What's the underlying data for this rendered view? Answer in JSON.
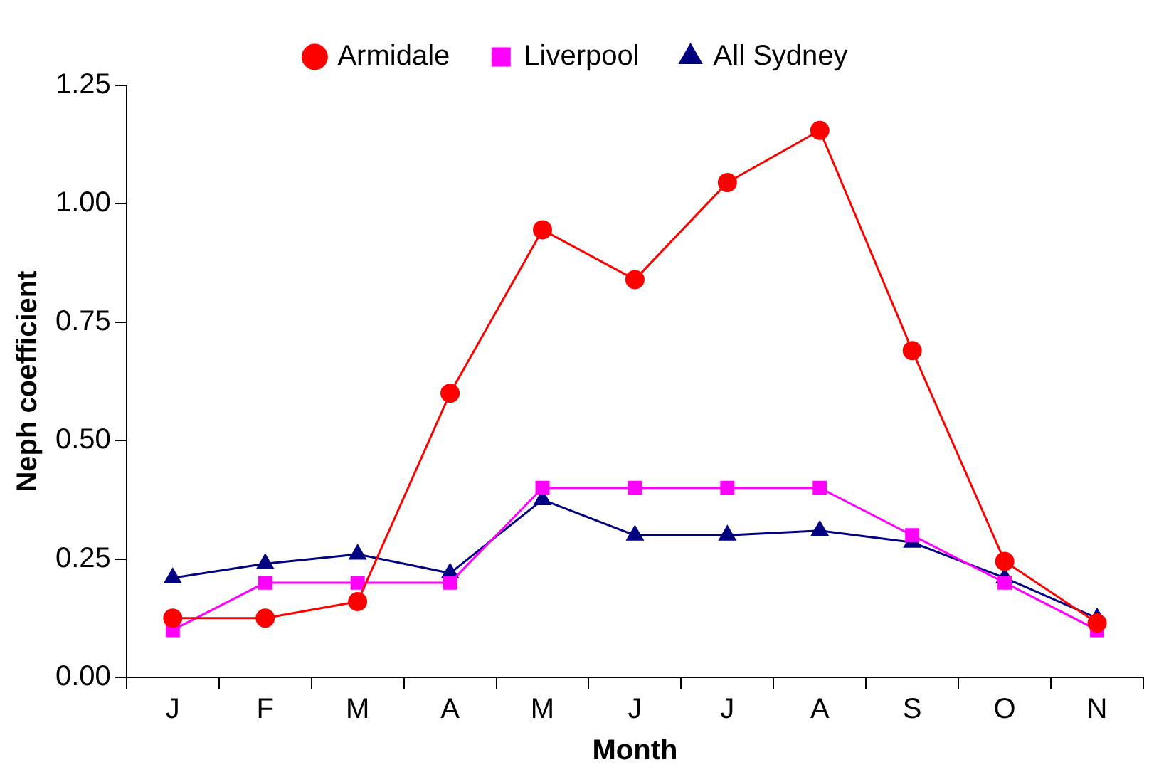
{
  "chart_data": {
    "type": "line",
    "xlabel": "Month",
    "ylabel": "Neph coefficient",
    "categories": [
      "J",
      "F",
      "M",
      "A",
      "M",
      "J",
      "J",
      "A",
      "S",
      "O",
      "N"
    ],
    "series": [
      {
        "name": "Armidale",
        "color": "#ff0000",
        "marker": "circle",
        "values": [
          0.125,
          0.125,
          0.16,
          0.6,
          0.945,
          0.84,
          1.045,
          1.155,
          0.69,
          0.245,
          0.115
        ]
      },
      {
        "name": "Liverpool",
        "color": "#ff00ff",
        "marker": "square",
        "values": [
          0.1,
          0.2,
          0.2,
          0.2,
          0.4,
          0.4,
          0.4,
          0.4,
          0.3,
          0.2,
          0.1
        ]
      },
      {
        "name": "All Sydney",
        "color": "#000080",
        "marker": "triangle",
        "values": [
          0.21,
          0.24,
          0.26,
          0.22,
          0.375,
          0.3,
          0.3,
          0.31,
          0.285,
          0.21,
          0.125
        ]
      }
    ],
    "ylim": [
      0,
      1.25
    ],
    "yticks": [
      {
        "value": 0,
        "label": "0.00"
      },
      {
        "value": 0.25,
        "label": "0.25"
      },
      {
        "value": 0.5,
        "label": "0.50"
      },
      {
        "value": 0.75,
        "label": "0.75"
      },
      {
        "value": 1,
        "label": "1.00"
      },
      {
        "value": 1.25,
        "label": "1.25"
      }
    ],
    "grid": false,
    "legend": "top"
  }
}
